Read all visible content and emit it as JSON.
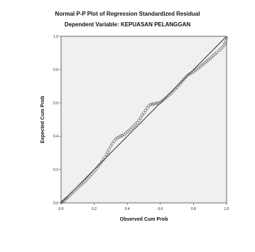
{
  "chart_data": {
    "type": "scatter",
    "title": "Normal P-P Plot of Regression Standardized Residual",
    "subtitle": "Dependent Variable: KEPUASAN PELANGGAN",
    "xlabel": "Observed Cum Prob",
    "ylabel": "Expected Cum Prob",
    "xlim": [
      0,
      1
    ],
    "ylim": [
      0,
      1
    ],
    "x_ticks": [
      "0.0",
      "0.2",
      "0.4",
      "0.6",
      "0.8",
      "1.0"
    ],
    "y_ticks": [
      "0.0",
      "0.2",
      "0.4",
      "0.6",
      "0.8",
      "1.0"
    ],
    "reference_line": [
      [
        0,
        0
      ],
      [
        1,
        1
      ]
    ],
    "colors": {
      "plot_background": "#f0f0f0",
      "marker": "#555555",
      "line": "#222222"
    },
    "points": [
      [
        0.005,
        0.004
      ],
      [
        0.012,
        0.009
      ],
      [
        0.02,
        0.016
      ],
      [
        0.028,
        0.024
      ],
      [
        0.036,
        0.03
      ],
      [
        0.045,
        0.038
      ],
      [
        0.055,
        0.048
      ],
      [
        0.065,
        0.058
      ],
      [
        0.075,
        0.066
      ],
      [
        0.085,
        0.076
      ],
      [
        0.095,
        0.085
      ],
      [
        0.105,
        0.095
      ],
      [
        0.115,
        0.103
      ],
      [
        0.125,
        0.112
      ],
      [
        0.135,
        0.12
      ],
      [
        0.145,
        0.13
      ],
      [
        0.155,
        0.14
      ],
      [
        0.165,
        0.15
      ],
      [
        0.175,
        0.16
      ],
      [
        0.185,
        0.172
      ],
      [
        0.195,
        0.184
      ],
      [
        0.205,
        0.196
      ],
      [
        0.215,
        0.208
      ],
      [
        0.225,
        0.22
      ],
      [
        0.235,
        0.232
      ],
      [
        0.245,
        0.246
      ],
      [
        0.255,
        0.26
      ],
      [
        0.265,
        0.274
      ],
      [
        0.275,
        0.29
      ],
      [
        0.282,
        0.305
      ],
      [
        0.29,
        0.322
      ],
      [
        0.3,
        0.34
      ],
      [
        0.31,
        0.356
      ],
      [
        0.32,
        0.37
      ],
      [
        0.33,
        0.382
      ],
      [
        0.34,
        0.39
      ],
      [
        0.35,
        0.395
      ],
      [
        0.36,
        0.4
      ],
      [
        0.37,
        0.405
      ],
      [
        0.38,
        0.41
      ],
      [
        0.39,
        0.418
      ],
      [
        0.4,
        0.426
      ],
      [
        0.41,
        0.434
      ],
      [
        0.42,
        0.442
      ],
      [
        0.43,
        0.452
      ],
      [
        0.44,
        0.462
      ],
      [
        0.45,
        0.472
      ],
      [
        0.46,
        0.482
      ],
      [
        0.47,
        0.495
      ],
      [
        0.48,
        0.51
      ],
      [
        0.49,
        0.525
      ],
      [
        0.5,
        0.54
      ],
      [
        0.51,
        0.555
      ],
      [
        0.52,
        0.57
      ],
      [
        0.53,
        0.582
      ],
      [
        0.54,
        0.59
      ],
      [
        0.55,
        0.592
      ],
      [
        0.56,
        0.594
      ],
      [
        0.57,
        0.596
      ],
      [
        0.58,
        0.598
      ],
      [
        0.59,
        0.6
      ],
      [
        0.6,
        0.605
      ],
      [
        0.61,
        0.612
      ],
      [
        0.62,
        0.62
      ],
      [
        0.63,
        0.628
      ],
      [
        0.64,
        0.636
      ],
      [
        0.65,
        0.645
      ],
      [
        0.66,
        0.654
      ],
      [
        0.67,
        0.664
      ],
      [
        0.68,
        0.674
      ],
      [
        0.69,
        0.684
      ],
      [
        0.7,
        0.694
      ],
      [
        0.71,
        0.705
      ],
      [
        0.72,
        0.716
      ],
      [
        0.73,
        0.728
      ],
      [
        0.74,
        0.74
      ],
      [
        0.75,
        0.752
      ],
      [
        0.76,
        0.762
      ],
      [
        0.77,
        0.77
      ],
      [
        0.78,
        0.776
      ],
      [
        0.79,
        0.782
      ],
      [
        0.8,
        0.788
      ],
      [
        0.81,
        0.795
      ],
      [
        0.82,
        0.802
      ],
      [
        0.83,
        0.81
      ],
      [
        0.84,
        0.818
      ],
      [
        0.85,
        0.826
      ],
      [
        0.86,
        0.834
      ],
      [
        0.87,
        0.842
      ],
      [
        0.88,
        0.85
      ],
      [
        0.89,
        0.858
      ],
      [
        0.9,
        0.866
      ],
      [
        0.91,
        0.875
      ],
      [
        0.92,
        0.884
      ],
      [
        0.93,
        0.893
      ],
      [
        0.94,
        0.902
      ],
      [
        0.955,
        0.915
      ],
      [
        0.965,
        0.925
      ],
      [
        0.975,
        0.935
      ],
      [
        0.985,
        0.946
      ],
      [
        0.99,
        0.958
      ],
      [
        0.995,
        0.972
      ],
      [
        1.0,
        0.99
      ]
    ]
  }
}
